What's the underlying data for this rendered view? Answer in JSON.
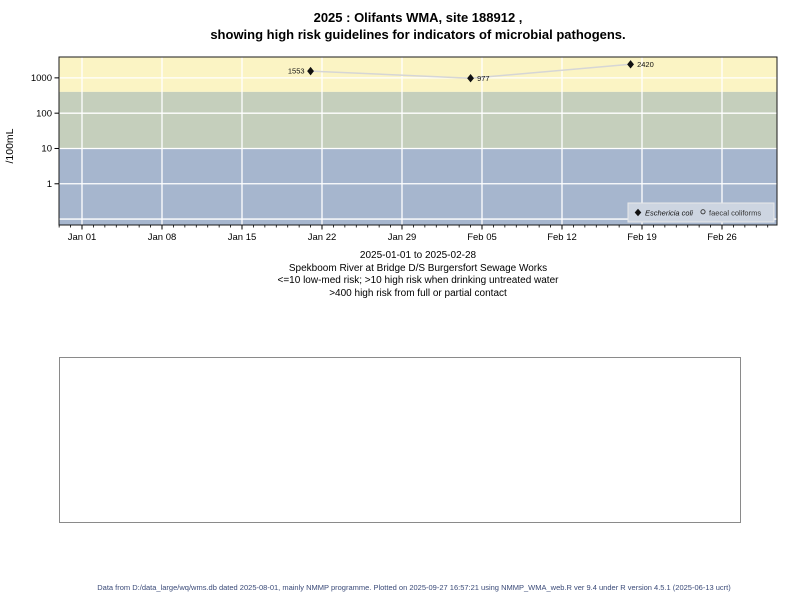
{
  "page": {
    "title_line1": "2025 : Olifants WMA, site 188912 ,",
    "title_line2": "showing high risk guidelines for indicators of microbial pathogens.",
    "caption_lines": [
      "2025-01-01 to 2025-02-28",
      "Spekboom River at Bridge D/S Burgersfort Sewage Works",
      "<=10 low-med risk; >10 high risk when drinking untreated water",
      ">400 high risk from full or partial contact"
    ],
    "footer": "Data from D:/data_large/wq/wms.db dated 2025-08-01, mainly NMMP programme. Plotted on 2025-09-27 16:57:21 using NMMP_WMA_web.R ver 9.4 under R version 4.5.1 (2025-06-13 ucrt)"
  },
  "chart_data": {
    "type": "line",
    "title": "2025 : Olifants WMA, site 188912 , showing high risk guidelines for indicators of microbial pathogens.",
    "ylabel": "/100mL",
    "y_scale": "log10",
    "ylim": [
      0.068,
      3900
    ],
    "y_ticks": [
      1,
      10,
      100,
      1000
    ],
    "h_gridlines": [
      0.1,
      1,
      10,
      100,
      1000
    ],
    "x_range": [
      "2025-01-01",
      "2025-02-28"
    ],
    "x_ticks": [
      {
        "day": 0,
        "label": "Jan 01"
      },
      {
        "day": 7,
        "label": "Jan 08"
      },
      {
        "day": 14,
        "label": "Jan 15"
      },
      {
        "day": 21,
        "label": "Jan 22"
      },
      {
        "day": 28,
        "label": "Jan 29"
      },
      {
        "day": 35,
        "label": "Feb 05"
      },
      {
        "day": 42,
        "label": "Feb 12"
      },
      {
        "day": 49,
        "label": "Feb 19"
      },
      {
        "day": 56,
        "label": "Feb 26"
      }
    ],
    "grid": true,
    "bands": [
      {
        "name": "high-risk-contact",
        "label": ">400 high risk from full or partial contact",
        "from": 400,
        "to": 3900,
        "color": "#FBF4C4"
      },
      {
        "name": "high-risk-drinking",
        "label": ">10 high risk when drinking untreated water",
        "from": 10,
        "to": 400,
        "color": "#C5CFBC"
      },
      {
        "name": "low-med-risk",
        "label": "<=10 low-med risk",
        "from": 0.068,
        "to": 10,
        "color": "#A6B6CE"
      }
    ],
    "series": [
      {
        "name": "Eschericia coli",
        "symbol": "filled-diamond",
        "color": "#111111",
        "line_color": "#D6D6D6",
        "points": [
          {
            "date": "2025-01-21",
            "day": 20,
            "value": 1553,
            "label": "1553",
            "label_side": "left"
          },
          {
            "date": "2025-02-04",
            "day": 34,
            "value": 977,
            "label": "977",
            "label_side": "right"
          },
          {
            "date": "2025-02-18",
            "day": 48,
            "value": 2420,
            "label": "2420",
            "label_side": "right"
          }
        ]
      },
      {
        "name": "faecal coliforms",
        "symbol": "open-circle",
        "color": "#333333",
        "line_color": "#D6D6D6",
        "points": []
      }
    ],
    "legend": {
      "position": "bottom-right",
      "background": "#CDD5E1",
      "entries": [
        {
          "label": "Eschericia coli",
          "symbol": "filled-diamond",
          "italic": true
        },
        {
          "label": "faecal coliforms",
          "symbol": "open-circle",
          "italic": false
        }
      ]
    }
  }
}
